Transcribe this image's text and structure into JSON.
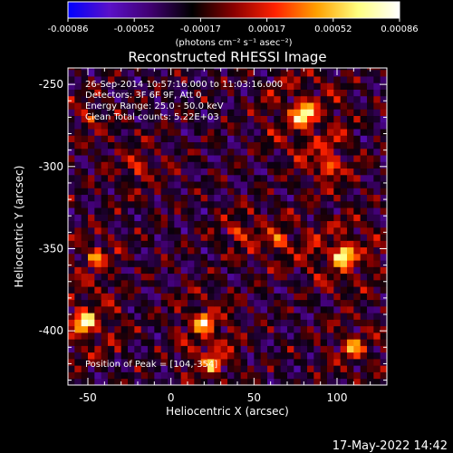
{
  "chart_data": {
    "type": "heatmap",
    "title": "Reconstructed RHESSI Image",
    "xlabel": "Heliocentric X (arcsec)",
    "ylabel": "Heliocentric Y (arcsec)",
    "xlim": [
      -62,
      130
    ],
    "ylim": [
      -433,
      -240
    ],
    "x_ticks": [
      -50,
      0,
      50,
      100
    ],
    "y_ticks": [
      -250,
      -300,
      -350,
      -400
    ],
    "colorbar": {
      "min": -0.00086,
      "max": 0.00086,
      "ticks": [
        "-0.00086",
        "-0.00052",
        "-0.00017",
        "0.00017",
        "0.00052",
        "0.00086"
      ],
      "label": "(photons cm⁻² s⁻¹ asec⁻²)",
      "colormap": [
        "#0000ff",
        "#5a10c8",
        "#400070",
        "#000000",
        "#8a0000",
        "#ff2200",
        "#ffa000",
        "#ffff80",
        "#ffffff"
      ]
    },
    "annotations": {
      "time_range": "26-Sep-2014 10:57:16.000 to 11:03:16.000",
      "detectors": "Detectors: 3F 6F 9F, Att 0",
      "energy_range": "Energy Range: 25.0 - 50.0 keV",
      "method": "Clean     Total counts: 5.22E+03",
      "peak": "Position of Peak = [104,-354]"
    },
    "peak": {
      "x": 104,
      "y": -354
    }
  },
  "footer_date": "17-May-2022 14:42"
}
